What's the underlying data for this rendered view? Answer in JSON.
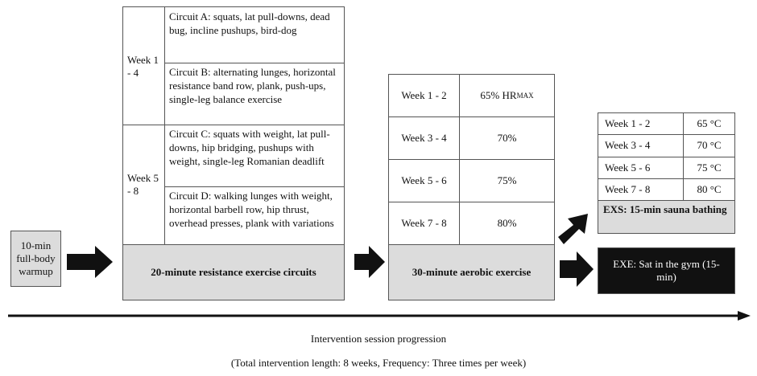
{
  "warmup": {
    "label": "10-min full-body warmup"
  },
  "resistance": {
    "groups": [
      {
        "weeks": "Week 1 - 4",
        "circuits": [
          "Circuit A: squats, lat pull-downs, dead bug, incline pushups, bird-dog",
          "Circuit B: alternating lunges, horizontal resistance band row, plank, push-ups, single-leg balance exercise"
        ]
      },
      {
        "weeks": "Week 5 - 8",
        "circuits": [
          "Circuit C: squats with weight, lat pull-downs, hip bridging, pushups with weight, single-leg Romanian deadlift",
          "Circuit D: walking lunges with weight, horizontal barbell row, hip thrust, overhead presses, plank with variations"
        ]
      }
    ],
    "footer": "20-minute resistance exercise circuits"
  },
  "aerobic": {
    "rows": [
      {
        "weeks": "Week 1 - 2",
        "intensity": "65% HR",
        "intensity_small": "MAX"
      },
      {
        "weeks": "Week 3 - 4",
        "intensity": "70%"
      },
      {
        "weeks": "Week 5 - 6",
        "intensity": "75%"
      },
      {
        "weeks": "Week 7 - 8",
        "intensity": "80%"
      }
    ],
    "footer": "30-minute aerobic exercise"
  },
  "sauna": {
    "rows": [
      {
        "weeks": "Week 1 - 2",
        "temp": "65 °C"
      },
      {
        "weeks": "Week 3 - 4",
        "temp": "70 °C"
      },
      {
        "weeks": "Week 5 - 6",
        "temp": "75 °C"
      },
      {
        "weeks": "Week 7 - 8",
        "temp": "80 °C"
      }
    ],
    "footer": "EXS: 15-min sauna bathing"
  },
  "control": {
    "label": "EXE: Sat in the gym (15-min)"
  },
  "axis_label": "Intervention session progression",
  "note": "(Total intervention length: 8 weeks, Frequency: Three times per week)"
}
